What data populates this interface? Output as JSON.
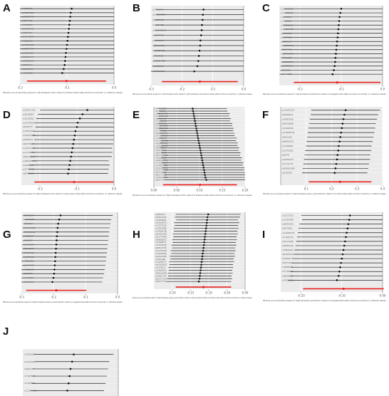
{
  "chart_data": [
    {
      "panel": "A",
      "type": "scatter",
      "xlim": [
        -0.2,
        0.0
      ],
      "xticks": [
        -0.2,
        -0.1,
        0.0
      ],
      "tick_labels": [
        "-0.2",
        "-0.1",
        "0.0"
      ],
      "labels": [
        "rs7958026",
        "rs12827928",
        "rs35889745",
        "rs1834701",
        "rs7785239",
        "rs35055543",
        "rs1807124",
        "rs11144571",
        "rs7821915",
        "rs17586985",
        "rs35267491",
        "rs11867223",
        "rs12921177",
        "rs10285101",
        "rs6825116",
        "rs12902974",
        "rs4845308"
      ],
      "values": [
        -0.09,
        -0.092,
        -0.093,
        -0.094,
        -0.095,
        -0.096,
        -0.097,
        -0.098,
        -0.099,
        -0.1,
        -0.101,
        -0.102,
        -0.103,
        -0.104,
        -0.105,
        -0.107,
        -0.11
      ],
      "lower": [
        -0.215,
        -0.21,
        -0.212,
        -0.21,
        -0.213,
        -0.215,
        -0.212,
        -0.214,
        -0.215,
        -0.212,
        -0.214,
        -0.216,
        -0.215,
        -0.214,
        -0.216,
        -0.214,
        -0.215
      ],
      "upper": [
        0.02,
        0.018,
        0.019,
        0.018,
        0.02,
        0.019,
        0.017,
        0.019,
        0.018,
        0.016,
        0.018,
        0.017,
        0.016,
        0.018,
        0.017,
        0.016,
        0.015
      ],
      "overall": {
        "value": -0.101,
        "lower": -0.185,
        "upper": -0.017
      },
      "xlabel": "MR leave-one-out sensitivity analysis for 'Left hemisphere limbic network to putamen white-matter structural connectivity' on 'Alzheimer disease'"
    },
    {
      "panel": "B",
      "type": "scatter",
      "xlim": [
        -0.3,
        0.0
      ],
      "xticks": [
        -0.3,
        -0.2,
        -0.1,
        0.0
      ],
      "tick_labels": [
        "-0.3",
        "-0.2",
        "-0.1",
        "0.0"
      ],
      "labels": [
        "rs7759844",
        "rs11101789",
        "rs4999101",
        "rs1109435",
        "rs112532315",
        "rs6097723",
        "rs5044339",
        "rs10649864",
        "rs10985466",
        "rs7964602",
        "rs10609408",
        "rs3689838",
        "rs56012200"
      ],
      "values": [
        -0.13,
        -0.132,
        -0.133,
        -0.135,
        -0.136,
        -0.138,
        -0.14,
        -0.141,
        -0.143,
        -0.145,
        -0.147,
        -0.15,
        -0.16
      ],
      "lower": [
        -0.285,
        -0.283,
        -0.288,
        -0.286,
        -0.287,
        -0.29,
        -0.288,
        -0.292,
        -0.29,
        -0.291,
        -0.293,
        -0.296,
        -0.3
      ],
      "upper": [
        0.025,
        0.02,
        0.022,
        0.021,
        0.019,
        0.018,
        0.017,
        0.016,
        0.014,
        0.013,
        0.012,
        0.01,
        0.005
      ],
      "overall": {
        "value": -0.142,
        "lower": -0.265,
        "upper": -0.019
      },
      "xlabel": "MR leave-one-out sensitivity analysis for 'Left hemisphere limbic network to right hemisphere visual network white-matter structural connectivity' on 'Alzheimer disease'"
    },
    {
      "panel": "C",
      "type": "scatter",
      "xlim": [
        -0.25,
        0.0
      ],
      "xticks": [
        -0.2,
        -0.1,
        0.0
      ],
      "tick_labels": [
        "-0.2",
        "-0.1",
        "0.0"
      ],
      "labels": [
        "rs10403280",
        "rs12528620",
        "rs1152224",
        "rs1765551",
        "rs74222839",
        "rs11184305",
        "rs1705328",
        "rs6097581",
        "rs9906337",
        "rs10052579",
        "rs5054736",
        "rs10741667",
        "rs7961255",
        "rs56528881",
        "rs11082311",
        "rs687661",
        "rs1744386"
      ],
      "values": [
        -0.1,
        -0.102,
        -0.104,
        -0.105,
        -0.106,
        -0.107,
        -0.108,
        -0.109,
        -0.11,
        -0.111,
        -0.112,
        -0.113,
        -0.114,
        -0.115,
        -0.116,
        -0.118,
        -0.121
      ],
      "lower": [
        -0.238,
        -0.236,
        -0.24,
        -0.238,
        -0.241,
        -0.239,
        -0.242,
        -0.24,
        -0.243,
        -0.241,
        -0.244,
        -0.242,
        -0.245,
        -0.243,
        -0.246,
        -0.247,
        -0.249
      ],
      "upper": [
        0.038,
        0.034,
        0.036,
        0.031,
        0.033,
        0.029,
        0.031,
        0.027,
        0.028,
        0.024,
        0.026,
        0.022,
        0.023,
        0.019,
        0.02,
        0.018,
        0.014
      ],
      "overall": {
        "value": -0.11,
        "lower": -0.215,
        "upper": -0.005
      },
      "xlabel": "MR leave-one-out sensitivity analysis for 'Left hemisphere somatomotor network to amygdala white-matter structural connectivity' on 'Alzheimer disease'"
    },
    {
      "panel": "D",
      "type": "scatter",
      "xlim": [
        -0.25,
        0.0
      ],
      "xticks": [
        -0.2,
        -0.1,
        0.0
      ],
      "tick_labels": [
        "-0.2",
        "-0.1",
        "0.0"
      ],
      "labels": [
        "rs12071333",
        "rs3016667",
        "rs1514363",
        "rs1075955",
        "rs629570",
        "rs7261922",
        "rs10693066",
        "rs585018",
        "rs6975810",
        "rs11673464",
        "rs11731317",
        "rs68716448",
        "rs180955000",
        "rs2696600",
        "rs3270138",
        "rs8571326"
      ],
      "values": [
        -0.072,
        -0.085,
        -0.092,
        -0.098,
        -0.1,
        -0.104,
        -0.106,
        -0.108,
        -0.11,
        -0.112,
        -0.114,
        -0.116,
        -0.118,
        -0.12,
        -0.122,
        -0.124
      ],
      "lower": [
        -0.2,
        -0.205,
        -0.21,
        -0.215,
        -0.212,
        -0.218,
        -0.22,
        -0.216,
        -0.222,
        -0.219,
        -0.224,
        -0.226,
        -0.222,
        -0.228,
        -0.23,
        -0.232
      ],
      "upper": [
        0.056,
        0.035,
        0.026,
        0.019,
        0.012,
        0.01,
        0.008,
        0.0,
        -0.002,
        -0.005,
        -0.004,
        -0.006,
        -0.014,
        -0.012,
        -0.014,
        -0.016
      ],
      "overall": {
        "value": -0.108,
        "lower": -0.215,
        "upper": -0.001
      },
      "xlabel": "MR leave-one-out sensitivity analysis for 'Right hemisphere limbic network to hippocampus white-matter structural connectivity' on 'Alzheimer disease'"
    },
    {
      "panel": "E",
      "type": "scatter",
      "xlim": [
        0.0,
        0.2
      ],
      "xticks": [
        0.0,
        0.05,
        0.1,
        0.15,
        0.2
      ],
      "tick_labels": [
        "0.00",
        "0.05",
        "0.10",
        "0.15",
        "0.20"
      ],
      "labels": [
        "rs4941220",
        "rs235972",
        "rs56550775",
        "rs12071135",
        "rs6062006",
        "rs7748712",
        "rs6747187",
        "rs77124848",
        "rs35082781",
        "rs7784135",
        "rs56175077",
        "rs47996606",
        "rs7795877",
        "rs75306782",
        "rs10965165",
        "rs75681061",
        "rs5688517",
        "rs2677161",
        "rs4977555",
        "rs65751706",
        "rs5566802",
        "rs48006713",
        "rs75261897",
        "rs11562022",
        "rs12738151",
        "rs12778175",
        "rs6771515",
        "rs6977183",
        "rs10217159",
        "rs647799"
      ],
      "values": [
        0.085,
        0.086,
        0.087,
        0.088,
        0.089,
        0.09,
        0.091,
        0.092,
        0.093,
        0.094,
        0.095,
        0.096,
        0.097,
        0.098,
        0.099,
        0.1,
        0.101,
        0.102,
        0.103,
        0.104,
        0.105,
        0.106,
        0.107,
        0.108,
        0.109,
        0.11,
        0.111,
        0.112,
        0.113,
        0.115
      ],
      "lower": [
        0.01,
        0.012,
        0.008,
        0.011,
        0.009,
        0.013,
        0.01,
        0.012,
        0.011,
        0.014,
        0.013,
        0.015,
        0.012,
        0.016,
        0.014,
        0.017,
        0.015,
        0.018,
        0.016,
        0.019,
        0.017,
        0.02,
        0.018,
        0.021,
        0.019,
        0.022,
        0.02,
        0.023,
        0.021,
        0.024
      ],
      "upper": [
        0.16,
        0.161,
        0.166,
        0.165,
        0.169,
        0.167,
        0.172,
        0.172,
        0.175,
        0.174,
        0.177,
        0.177,
        0.182,
        0.18,
        0.184,
        0.183,
        0.187,
        0.186,
        0.19,
        0.189,
        0.193,
        0.192,
        0.196,
        0.195,
        0.199,
        0.198,
        0.2,
        0.2,
        0.2,
        0.2
      ],
      "overall": {
        "value": 0.101,
        "lower": 0.02,
        "upper": 0.182
      },
      "xlabel": "MR leave-one-out sensitivity analysis for 'Right hemisphere limbic network to thalamus white-matter structural connectivity' on 'Alzheimer disease'"
    },
    {
      "panel": "F",
      "type": "scatter",
      "xlim": [
        0.0,
        0.4
      ],
      "xticks": [
        0.1,
        0.2,
        0.3,
        0.4
      ],
      "tick_labels": [
        "0.1",
        "0.2",
        "0.3",
        "0.4"
      ],
      "labels": [
        "rs11645223",
        "rs6696611",
        "rs7687658",
        "rs9532886",
        "rs7049536",
        "rs11628132",
        "rs401169",
        "rs4862630",
        "rs7229691",
        "rs1475301",
        "rs6576",
        "rs1955223",
        "rs1172135",
        "rs59005490",
        "rs220303"
      ],
      "values": [
        0.255,
        0.25,
        0.246,
        0.243,
        0.24,
        0.237,
        0.234,
        0.231,
        0.228,
        0.226,
        0.223,
        0.221,
        0.218,
        0.215,
        0.212
      ],
      "lower": [
        0.12,
        0.118,
        0.114,
        0.112,
        0.109,
        0.106,
        0.104,
        0.101,
        0.099,
        0.096,
        0.094,
        0.091,
        0.089,
        0.086,
        0.084
      ],
      "upper": [
        0.39,
        0.382,
        0.378,
        0.374,
        0.371,
        0.368,
        0.364,
        0.361,
        0.357,
        0.356,
        0.352,
        0.351,
        0.347,
        0.344,
        0.34
      ],
      "overall": {
        "value": 0.233,
        "lower": 0.11,
        "upper": 0.356
      },
      "xlabel": "MR leave-one-out sensitivity analysis for 'Right hemisphere salience_ventral attention network to accumbens white-matter structural connectivity' on 'Alzheimer disease'"
    },
    {
      "panel": "G",
      "type": "scatter",
      "xlim": [
        -0.3,
        0.0
      ],
      "xticks": [
        -0.3,
        -0.2,
        -0.1,
        0.0
      ],
      "tick_labels": [
        "-0.3",
        "-0.2",
        "-0.1",
        "0.0"
      ],
      "labels": [
        "rs1986627",
        "rs1157225",
        "rs526613",
        "rs11572083",
        "rs15188659",
        "rs7280807",
        "rs568637",
        "rs3074007",
        "rs6876591",
        "rs6797435",
        "rs5975235",
        "rs7581653",
        "rs5307572",
        "rs7522630",
        "rs550306",
        "rs7143311",
        "rs6791126"
      ],
      "values": [
        -0.178,
        -0.182,
        -0.185,
        -0.187,
        -0.188,
        -0.189,
        -0.19,
        -0.191,
        -0.192,
        -0.193,
        -0.194,
        -0.195,
        -0.196,
        -0.197,
        -0.198,
        -0.2,
        -0.203
      ],
      "lower": [
        -0.295,
        -0.29,
        -0.292,
        -0.296,
        -0.294,
        -0.297,
        -0.295,
        -0.298,
        -0.296,
        -0.299,
        -0.297,
        -0.3,
        -0.298,
        -0.3,
        -0.299,
        -0.3,
        -0.3
      ],
      "upper": [
        -0.015,
        -0.02,
        -0.022,
        -0.024,
        -0.026,
        -0.027,
        -0.029,
        -0.03,
        -0.032,
        -0.033,
        -0.035,
        -0.036,
        -0.038,
        -0.04,
        -0.042,
        -0.045,
        -0.048
      ],
      "overall": {
        "value": -0.191,
        "lower": -0.285,
        "upper": -0.097
      },
      "xlabel": "MR leave-one-out sensitivity analysis for 'Right hemisphere salience_ventral attention network to amygdala white-matter structural connectivity' on 'Alzheimer disease'"
    },
    {
      "panel": "H",
      "type": "scatter",
      "xlim": [
        -0.25,
        0.0
      ],
      "xticks": [
        -0.2,
        -0.15,
        -0.1,
        -0.05,
        0.0
      ],
      "tick_labels": [
        "-0.20",
        "-0.15",
        "-0.10",
        "-0.05",
        "0.00"
      ],
      "labels": [
        "rs486224",
        "rs6953205",
        "rs7955891",
        "rs5563014",
        "rs7107505",
        "rs1267888",
        "rs7058108",
        "rs6781266",
        "rs2277458",
        "rs9808052",
        "rs1386811",
        "rs7354166",
        "rs6811505",
        "rs1115048",
        "rs7051856",
        "rs2610583",
        "rs781048",
        "rs1556872",
        "rs6782918",
        "rs107618",
        "rs1266521",
        "rs5811658",
        "rs2361724",
        "rs2071729",
        "rs6677711"
      ],
      "values": [
        -0.101,
        -0.103,
        -0.104,
        -0.105,
        -0.106,
        -0.107,
        -0.108,
        -0.109,
        -0.11,
        -0.111,
        -0.112,
        -0.113,
        -0.114,
        -0.115,
        -0.116,
        -0.117,
        -0.118,
        -0.119,
        -0.12,
        -0.121,
        -0.122,
        -0.123,
        -0.124,
        -0.125,
        -0.127
      ],
      "lower": [
        -0.19,
        -0.192,
        -0.189,
        -0.194,
        -0.193,
        -0.196,
        -0.195,
        -0.198,
        -0.197,
        -0.2,
        -0.199,
        -0.202,
        -0.201,
        -0.204,
        -0.203,
        -0.206,
        -0.205,
        -0.208,
        -0.207,
        -0.21,
        -0.209,
        -0.212,
        -0.211,
        -0.214,
        -0.216
      ],
      "upper": [
        -0.012,
        -0.014,
        -0.019,
        -0.016,
        -0.019,
        -0.018,
        -0.021,
        -0.02,
        -0.023,
        -0.022,
        -0.025,
        -0.024,
        -0.027,
        -0.026,
        -0.029,
        -0.028,
        -0.031,
        -0.03,
        -0.033,
        -0.032,
        -0.035,
        -0.034,
        -0.037,
        -0.036,
        -0.038
      ],
      "overall": {
        "value": -0.114,
        "lower": -0.19,
        "upper": -0.038
      },
      "xlabel": "MR leave-one-out sensitivity analysis for 'Right hemisphere salience_ventral attention network to right hemisphere default mode network white-matter structural connectivity' on 'Alzheimer disease'"
    },
    {
      "panel": "I",
      "type": "scatter",
      "xlim": [
        -0.25,
        0.0
      ],
      "xticks": [
        -0.2,
        -0.1,
        0.0
      ],
      "tick_labels": [
        "-0.20",
        "-0.10",
        "0.00"
      ],
      "labels": [
        "rs1517225",
        "rs1150448",
        "rs3045340",
        "rs567580",
        "rs11095537",
        "rs7140975",
        "rs2211080",
        "rs4805290",
        "rs7856444",
        "rs6163018",
        "rs1565077",
        "rs5871661",
        "rs1856681",
        "rs1716033",
        "rs6669152",
        "rs7826888"
      ],
      "values": [
        -0.08,
        -0.082,
        -0.084,
        -0.086,
        -0.088,
        -0.09,
        -0.092,
        -0.094,
        -0.096,
        -0.098,
        -0.1,
        -0.102,
        -0.104,
        -0.106,
        -0.108,
        -0.112
      ],
      "lower": [
        -0.2,
        -0.198,
        -0.204,
        -0.206,
        -0.208,
        -0.21,
        -0.212,
        -0.214,
        -0.216,
        -0.218,
        -0.22,
        -0.222,
        -0.224,
        -0.226,
        -0.228,
        -0.232
      ],
      "upper": [
        0.04,
        0.034,
        0.036,
        0.034,
        0.032,
        0.03,
        0.028,
        0.026,
        0.024,
        0.022,
        0.02,
        0.018,
        0.016,
        0.014,
        0.012,
        0.008
      ],
      "overall": {
        "value": -0.096,
        "lower": -0.195,
        "upper": 0.003
      },
      "xlabel": "MR leave-one-out sensitivity analysis for 'Right hemisphere somatomotor network to amygdala white-matter structural connectivity' on 'Alzheimer disease'"
    },
    {
      "panel": "J",
      "type": "scatter",
      "xlim": [
        -0.3,
        0.0
      ],
      "xticks": [],
      "tick_labels": [],
      "labels": [
        "rs7291834",
        "rs1223362",
        "rs265135",
        "rs7264578",
        "rs1165551",
        "rs11304430"
      ],
      "values": [
        -0.14,
        -0.145,
        -0.15,
        -0.153,
        -0.156,
        -0.16
      ],
      "lower": [
        -0.265,
        -0.262,
        -0.268,
        -0.27,
        -0.272,
        -0.275
      ],
      "upper": [
        -0.015,
        -0.028,
        -0.032,
        -0.036,
        -0.04,
        -0.045
      ],
      "overall": null,
      "xlabel": ""
    }
  ],
  "colors": {
    "panel_bg": "#ebebeb",
    "grid": "#ffffff",
    "ci_line": "#222222",
    "point": "#111111",
    "overall": "#e8231f",
    "zero_line": "#777777"
  }
}
